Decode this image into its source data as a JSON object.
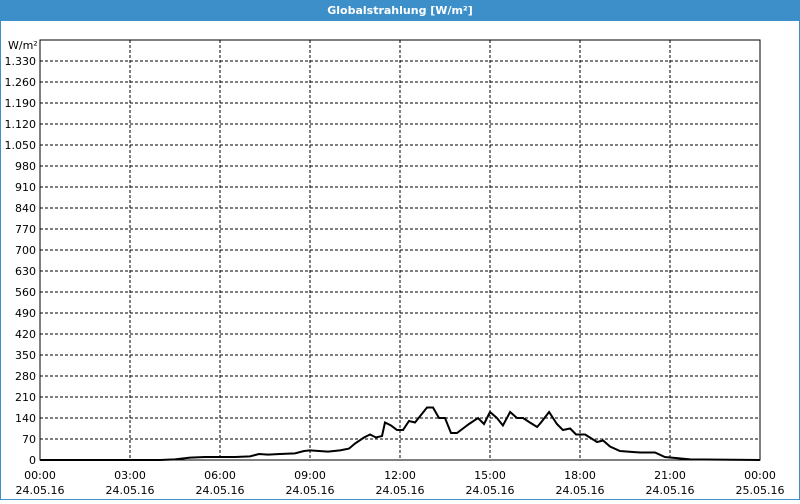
{
  "chart_data": {
    "type": "line",
    "title": "Globalstrahlung [W/m²]",
    "y_unit": "W/m²",
    "x": [
      0,
      1,
      2,
      3,
      4,
      4.5,
      5,
      5.5,
      6,
      6.5,
      7,
      7.3,
      7.6,
      8,
      8.5,
      8.8,
      9,
      9.3,
      9.6,
      10,
      10.3,
      10.5,
      10.8,
      11,
      11.2,
      11.4,
      11.5,
      11.7,
      11.9,
      12.1,
      12.3,
      12.5,
      12.7,
      12.9,
      13.1,
      13.3,
      13.5,
      13.7,
      13.9,
      14.1,
      14.3,
      14.6,
      14.8,
      15,
      15.23,
      15.43,
      15.67,
      15.9,
      16.1,
      16.33,
      16.57,
      16.7,
      16.97,
      17.23,
      17.43,
      17.67,
      17.87,
      18.17,
      18.33,
      18.57,
      18.77,
      19,
      19.33,
      20,
      20.5,
      20.83,
      21.67,
      24
    ],
    "series": [
      {
        "name": "Globalstrahlung",
        "color": "#000000",
        "values": [
          0,
          0,
          0,
          0,
          0,
          2,
          8,
          10,
          10,
          10,
          12,
          20,
          18,
          20,
          22,
          30,
          32,
          30,
          28,
          32,
          38,
          55,
          75,
          85,
          75,
          80,
          125,
          115,
          100,
          100,
          130,
          125,
          150,
          175,
          175,
          140,
          140,
          90,
          90,
          105,
          120,
          140,
          120,
          160,
          140,
          115,
          160,
          140,
          140,
          125,
          110,
          125,
          160,
          120,
          100,
          105,
          85,
          85,
          75,
          60,
          65,
          45,
          30,
          25,
          25,
          10,
          2,
          0
        ]
      }
    ],
    "xlim": [
      0,
      24
    ],
    "xticks": [
      {
        "value": 0,
        "label": "00:00"
      },
      {
        "value": 3,
        "label": "03:00"
      },
      {
        "value": 6,
        "label": "06:00"
      },
      {
        "value": 9,
        "label": "09:00"
      },
      {
        "value": 12,
        "label": "12:00"
      },
      {
        "value": 15,
        "label": "15:00"
      },
      {
        "value": 18,
        "label": "18:00"
      },
      {
        "value": 21,
        "label": "21:00"
      },
      {
        "value": 24,
        "label": "00:00"
      }
    ],
    "xtick_dates": [
      "24.05.16",
      "24.05.16",
      "24.05.16",
      "24.05.16",
      "24.05.16",
      "24.05.16",
      "24.05.16",
      "24.05.16",
      "25.05.16"
    ],
    "ylim": [
      0,
      1400
    ],
    "yticks": [
      0,
      70,
      140,
      210,
      280,
      350,
      420,
      490,
      560,
      630,
      700,
      770,
      840,
      910,
      980,
      {
        "value": 1050,
        "label": "1.050"
      },
      {
        "value": 1120,
        "label": "1.120"
      },
      {
        "value": 1190,
        "label": "1.190"
      },
      {
        "value": 1260,
        "label": "1.260"
      },
      {
        "value": 1330,
        "label": "1.330"
      }
    ],
    "grid": true
  }
}
